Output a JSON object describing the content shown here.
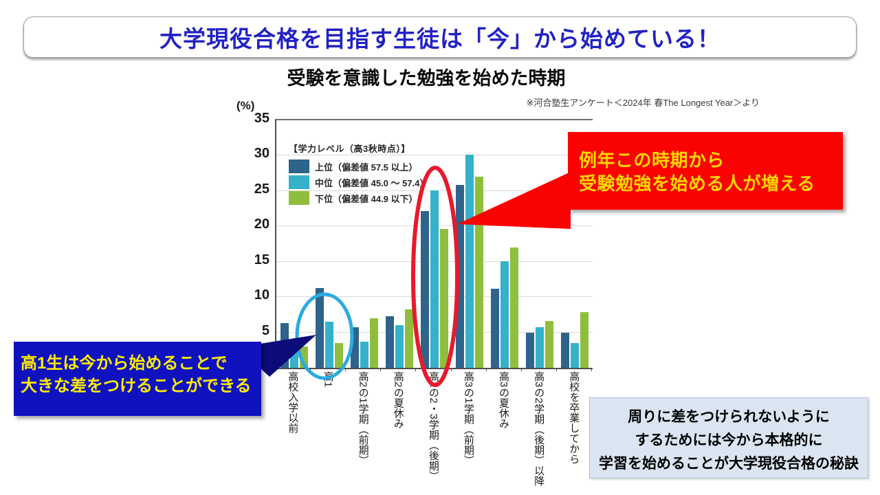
{
  "title_banner": {
    "text": "大学現役合格を目指す生徒は「今」から始めている！"
  },
  "chart_heading": "受験を意識した勉強を始めた時期",
  "source_note": "※河合塾生アンケート＜2024年 春The Longest Year＞より",
  "chart_data": {
    "type": "bar",
    "title": "受験を意識した勉強を始めた時期",
    "unit_label": "(%)",
    "ylim": [
      0,
      35
    ],
    "ytick_step": 5,
    "yticks": [
      0,
      5,
      10,
      15,
      20,
      25,
      30,
      35
    ],
    "grid": true,
    "legend_position": "top-left-inside",
    "legend_title": "【学力レベル（高3秋時点）】",
    "categories": [
      "高校入学以前",
      "高1",
      "高2の1学期（前期）",
      "高2の夏休み",
      "高2の2・3学期（後期）",
      "高3の1学期（前期）",
      "高3の夏休み",
      "高3の2学期（後期）以降",
      "高校を卒業してから"
    ],
    "series": [
      {
        "key": "top",
        "name": "上位（偏差値 57.5 以上）",
        "color": "#2e638c",
        "values": [
          6.3,
          11.3,
          5.7,
          7.3,
          22.2,
          25.9,
          11.2,
          5.0,
          5.0
        ]
      },
      {
        "key": "middle",
        "name": "中位（偏差値 45.0 ～ 57.4）",
        "color": "#35b1c9",
        "values": [
          4.0,
          6.5,
          3.7,
          6.0,
          25.1,
          30.1,
          15.1,
          5.7,
          3.5
        ]
      },
      {
        "key": "bottom",
        "name": "下位（偏差値 44.9 以下）",
        "color": "#8fbe3e",
        "values": [
          3.0,
          3.5,
          7.0,
          8.3,
          19.6,
          27.0,
          17.0,
          6.6,
          7.9
        ]
      }
    ]
  },
  "annotations": {
    "red_callout": {
      "lines": [
        "例年この時期から",
        "受験勉強を始める人が増える"
      ],
      "bg": "#fa0200",
      "text_color": "#ffd700"
    },
    "blue_callout": {
      "lines": [
        "高1生は今から始めることで",
        "大きな差をつけることができる"
      ],
      "bg": "#1012c0",
      "text_color": "#ffec00",
      "arrow_color": "#0b0c7a"
    },
    "summary_box": {
      "lines": [
        "周りに差をつけられないように",
        "するためには今から本格的に",
        "学習を始めることが大学現役合格の秘訣"
      ],
      "bg": "#dbe5f1"
    },
    "red_ellipse": {
      "color": "#e8192c"
    },
    "cyan_ellipse": {
      "color": "#29abe2"
    }
  },
  "colors": {
    "title_text": "#2222c4",
    "axis": "#4d4d4d",
    "grid": "#d9d9d9"
  }
}
